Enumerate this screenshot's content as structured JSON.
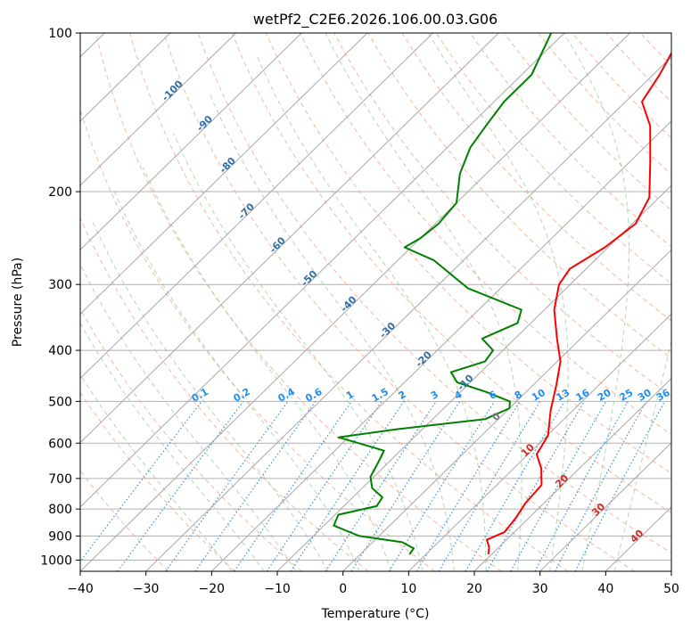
{
  "chart_data": {
    "type": "line",
    "subtype": "skew-t log-p",
    "title": "wetPf2_C2E6.2026.106.00.03.G06",
    "xlabel": "Temperature (°C)",
    "ylabel": "Pressure (hPa)",
    "xlim": [
      -40,
      50
    ],
    "ylim": [
      1050,
      100
    ],
    "y_scale": "log",
    "grid": true,
    "x_ticks": [
      -40,
      -30,
      -20,
      -10,
      0,
      10,
      20,
      30,
      40,
      50
    ],
    "x_tick_labels": [
      "−40",
      "−30",
      "−20",
      "−10",
      "0",
      "10",
      "20",
      "30",
      "40",
      "50"
    ],
    "y_ticks": [
      100,
      200,
      300,
      400,
      500,
      600,
      700,
      800,
      900,
      1000
    ],
    "y_tick_labels": [
      "100",
      "200",
      "300",
      "400",
      "500",
      "600",
      "700",
      "800",
      "900",
      "1000"
    ],
    "isotherm_labels": [
      {
        "label": "-100",
        "x": -100,
        "y": 130
      },
      {
        "label": "-90",
        "x": -90,
        "y": 150
      },
      {
        "label": "-80",
        "x": -80,
        "y": 180
      },
      {
        "label": "-70",
        "x": -70,
        "y": 220
      },
      {
        "label": "-60",
        "x": -60,
        "y": 255
      },
      {
        "label": "-50",
        "x": -50,
        "y": 295
      },
      {
        "label": "-40",
        "x": -40,
        "y": 330
      },
      {
        "label": "-30",
        "x": -30,
        "y": 370
      },
      {
        "label": "-20",
        "x": -20,
        "y": 420
      },
      {
        "label": "-10",
        "x": -10,
        "y": 465
      },
      {
        "label": "0",
        "x": 0,
        "y": 540
      },
      {
        "label": "10",
        "x": 10,
        "y": 625
      },
      {
        "label": "20",
        "x": 20,
        "y": 715
      },
      {
        "label": "30",
        "x": 30,
        "y": 810
      },
      {
        "label": "40",
        "x": 40,
        "y": 910
      }
    ],
    "mixing_ratio_labels": [
      "0.1",
      "0.2",
      "0.4",
      "0.6",
      "1",
      "1.5",
      "2",
      "3",
      "4",
      "6",
      "8",
      "10",
      "13",
      "16",
      "20",
      "25",
      "30",
      "36"
    ],
    "mixing_ratio_values": [
      0.1,
      0.2,
      0.4,
      0.6,
      1,
      1.5,
      2,
      3,
      4,
      6,
      8,
      10,
      13,
      16,
      20,
      25,
      30,
      36
    ],
    "series": [
      {
        "color": "#ff0000",
        "values": [
          {
            "p": 975,
            "t": 19.5
          },
          {
            "p": 945,
            "t": 18.5
          },
          {
            "p": 915,
            "t": 17.0
          },
          {
            "p": 885,
            "t": 18.5
          },
          {
            "p": 830,
            "t": 18.0
          },
          {
            "p": 780,
            "t": 17.2
          },
          {
            "p": 720,
            "t": 16.8
          },
          {
            "p": 670,
            "t": 14.2
          },
          {
            "p": 630,
            "t": 11.3
          },
          {
            "p": 580,
            "t": 10.1
          },
          {
            "p": 520,
            "t": 6.6
          },
          {
            "p": 465,
            "t": 3.5
          },
          {
            "p": 420,
            "t": 0.5
          },
          {
            "p": 380,
            "t": -3.6
          },
          {
            "p": 335,
            "t": -8.5
          },
          {
            "p": 300,
            "t": -11.7
          },
          {
            "p": 280,
            "t": -12.5
          },
          {
            "p": 255,
            "t": -10.5
          },
          {
            "p": 230,
            "t": -9.5
          },
          {
            "p": 205,
            "t": -11.5
          },
          {
            "p": 175,
            "t": -17.0
          },
          {
            "p": 150,
            "t": -22.5
          },
          {
            "p": 135,
            "t": -27.5
          },
          {
            "p": 120,
            "t": -29.0
          },
          {
            "p": 100,
            "t": -32.0
          }
        ]
      },
      {
        "color": "#008000",
        "values": [
          {
            "p": 975,
            "t": 7.5
          },
          {
            "p": 950,
            "t": 7.2
          },
          {
            "p": 925,
            "t": 4.5
          },
          {
            "p": 900,
            "t": -3.0
          },
          {
            "p": 860,
            "t": -8.5
          },
          {
            "p": 820,
            "t": -9.5
          },
          {
            "p": 790,
            "t": -5.0
          },
          {
            "p": 760,
            "t": -5.5
          },
          {
            "p": 730,
            "t": -8.5
          },
          {
            "p": 695,
            "t": -10.5
          },
          {
            "p": 655,
            "t": -11.5
          },
          {
            "p": 620,
            "t": -12.5
          },
          {
            "p": 600,
            "t": -17.5
          },
          {
            "p": 585,
            "t": -21.5
          },
          {
            "p": 565,
            "t": -14.0
          },
          {
            "p": 540,
            "t": -2.0
          },
          {
            "p": 515,
            "t": 0.0
          },
          {
            "p": 500,
            "t": -1.0
          },
          {
            "p": 480,
            "t": -6.0
          },
          {
            "p": 460,
            "t": -12.0
          },
          {
            "p": 440,
            "t": -14.5
          },
          {
            "p": 420,
            "t": -11.0
          },
          {
            "p": 400,
            "t": -11.5
          },
          {
            "p": 380,
            "t": -15.0
          },
          {
            "p": 355,
            "t": -12.0
          },
          {
            "p": 335,
            "t": -13.5
          },
          {
            "p": 305,
            "t": -25.0
          },
          {
            "p": 270,
            "t": -34.5
          },
          {
            "p": 255,
            "t": -41.0
          },
          {
            "p": 245,
            "t": -40.0
          },
          {
            "p": 230,
            "t": -39.5
          },
          {
            "p": 210,
            "t": -40.0
          },
          {
            "p": 185,
            "t": -44.0
          },
          {
            "p": 165,
            "t": -46.5
          },
          {
            "p": 150,
            "t": -47.5
          },
          {
            "p": 135,
            "t": -48.5
          },
          {
            "p": 120,
            "t": -48.5
          },
          {
            "p": 100,
            "t": -52.0
          }
        ]
      }
    ]
  }
}
